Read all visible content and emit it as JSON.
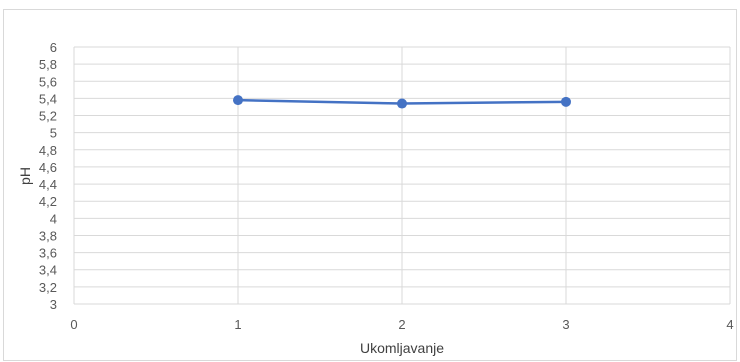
{
  "chart_data": {
    "type": "scatter",
    "mode": "lines+markers",
    "title": "",
    "xlabel": "Ukomljavanje",
    "ylabel": "pH",
    "xlim": [
      0,
      4
    ],
    "ylim": [
      3,
      6
    ],
    "x_ticks": [
      0,
      1,
      2,
      3,
      4
    ],
    "x_tick_labels": [
      "0",
      "1",
      "2",
      "3",
      "4"
    ],
    "y_ticks": [
      3,
      3.2,
      3.4,
      3.6,
      3.8,
      4,
      4.2,
      4.4,
      4.6,
      4.8,
      5,
      5.2,
      5.4,
      5.6,
      5.8,
      6
    ],
    "y_tick_labels": [
      "3",
      "3,2",
      "3,4",
      "3,6",
      "3,8",
      "4",
      "4,2",
      "4,4",
      "4,6",
      "4,8",
      "5",
      "5,2",
      "5,4",
      "5,6",
      "5,8",
      "6"
    ],
    "grid": true,
    "legend": "none",
    "series": [
      {
        "x": [
          1,
          2,
          3
        ],
        "y": [
          5.38,
          5.34,
          5.36
        ],
        "color": "#4472c4"
      }
    ],
    "colors": {
      "series": "#4472c4",
      "grid": "#d9d9d9",
      "text": "#595959",
      "frame": "#d9d9d9"
    }
  }
}
